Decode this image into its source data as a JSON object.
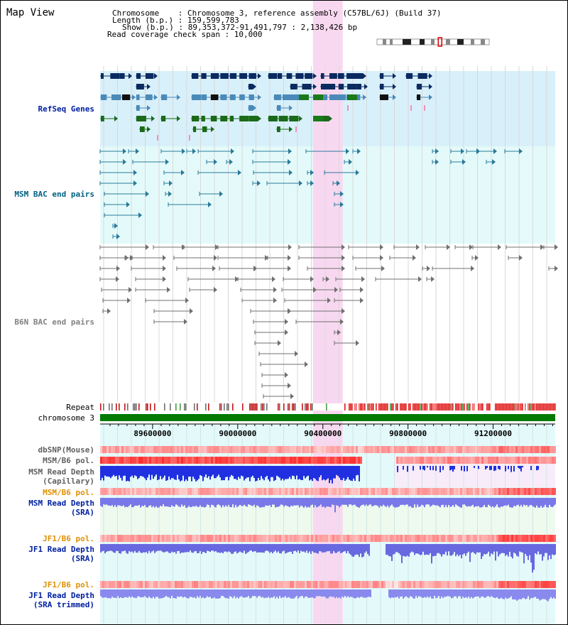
{
  "title": "Map View",
  "info": {
    "chromosome_line": "Chromosome    : Chromosome 3, reference assembly (C57BL/6J) (Build 37)",
    "length_line": "Length (b.p.) : 159,599,783",
    "show_line": "Show (b.p.) : 89,353,372-91,491,797 : 2,138,426 bp",
    "span_line": "Read coverage check span : 10,000"
  },
  "region": {
    "start": 89353372,
    "end": 91491797
  },
  "highlight": {
    "start": 90353372,
    "end": 90493372,
    "color": "#f8d8f0"
  },
  "axis": {
    "ticks": [
      89600000,
      90000000,
      90400000,
      90800000,
      91200000
    ],
    "tick_labels": [
      "89600000",
      "90000000",
      "90400000",
      "90800000",
      "91200000"
    ],
    "track_label": "chromosome 3",
    "color": "#007a00"
  },
  "ideogram": {
    "position_fraction": 0.565
  },
  "tracks": {
    "refseq": {
      "label": "RefSeq Genes",
      "color": "#0020a0",
      "bg": "#d8f0fa"
    },
    "msm_bac": {
      "label": "MSM BAC end pairs",
      "color": "#006080",
      "bg": "#e4fafa"
    },
    "b6n_bac": {
      "label": "B6N BAC end pairs",
      "color": "#808080"
    },
    "repeat": {
      "label": "Repeat"
    },
    "dbsnp": {
      "label": "dbSNP(Mouse)",
      "color": "#606060"
    },
    "msm_pol_cap": {
      "label": "MSM/B6 pol.",
      "color": "#606060"
    },
    "msm_depth_cap": {
      "label1": "MSM Read Depth",
      "label2": "(Capillary)",
      "color": "#606060"
    },
    "msm_pol_sra": {
      "label": "MSM/B6 pol.",
      "color": "#e09000"
    },
    "msm_depth_sra": {
      "label1": "MSM Read Depth",
      "label2": "(SRA)",
      "color": "#0020a0"
    },
    "jf1_pol": {
      "label": "JF1/B6 pol.",
      "color": "#e09000"
    },
    "jf1_depth": {
      "label1": "JF1 Read Depth",
      "label2": "(SRA)",
      "color": "#0020a0"
    },
    "jf1_pol2": {
      "label": "JF1/B6 pol.",
      "color": "#e09000"
    },
    "jf1_depth_trim": {
      "label1": "JF1 Read Depth",
      "label2": "(SRA trimmed)",
      "color": "#0020a0"
    }
  }
}
